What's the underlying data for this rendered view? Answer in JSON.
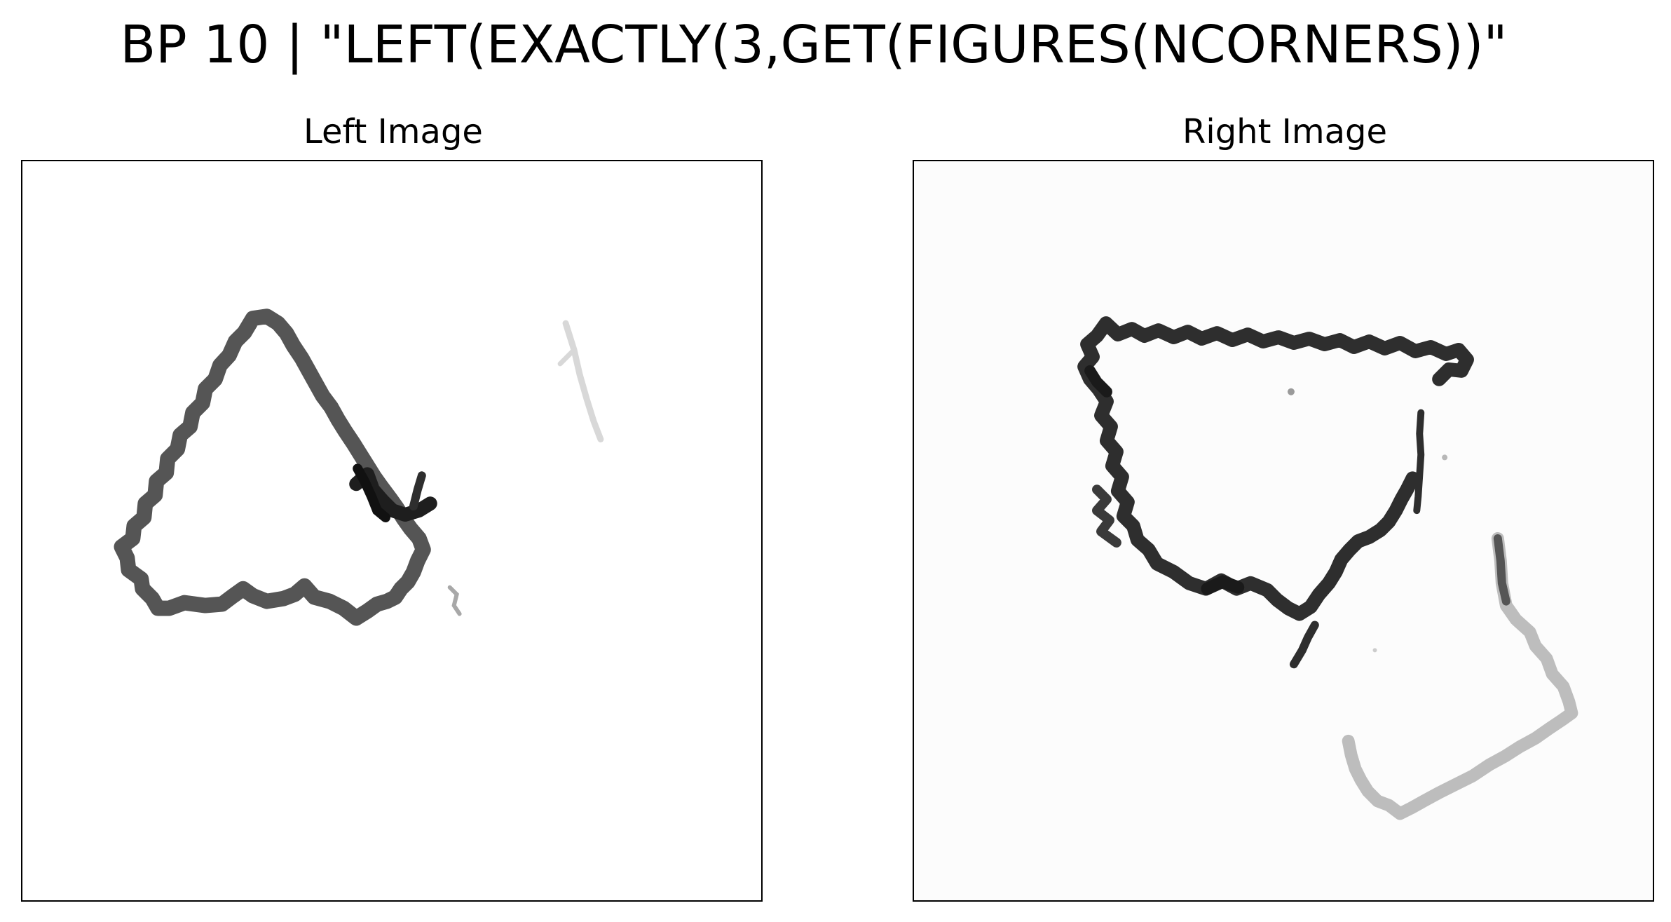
{
  "figure": {
    "title": "BP 10 | \"LEFT(EXACTLY(3,GET(FIGURES(NCORNERS))\""
  },
  "panels": [
    {
      "title": "Left Image",
      "content": "hand-drawn triangle (dark) with a faint stroke"
    },
    {
      "title": "Right Image",
      "content": "hand-drawn quadrilateral (dark) with a light-gray irregular shape"
    }
  ],
  "colors": {
    "ink_dark": "#2e2e2e",
    "ink_mid": "#555555",
    "ink_light": "#bdbdbd",
    "ink_faint": "#d8d8d8",
    "frame": "#000000"
  }
}
